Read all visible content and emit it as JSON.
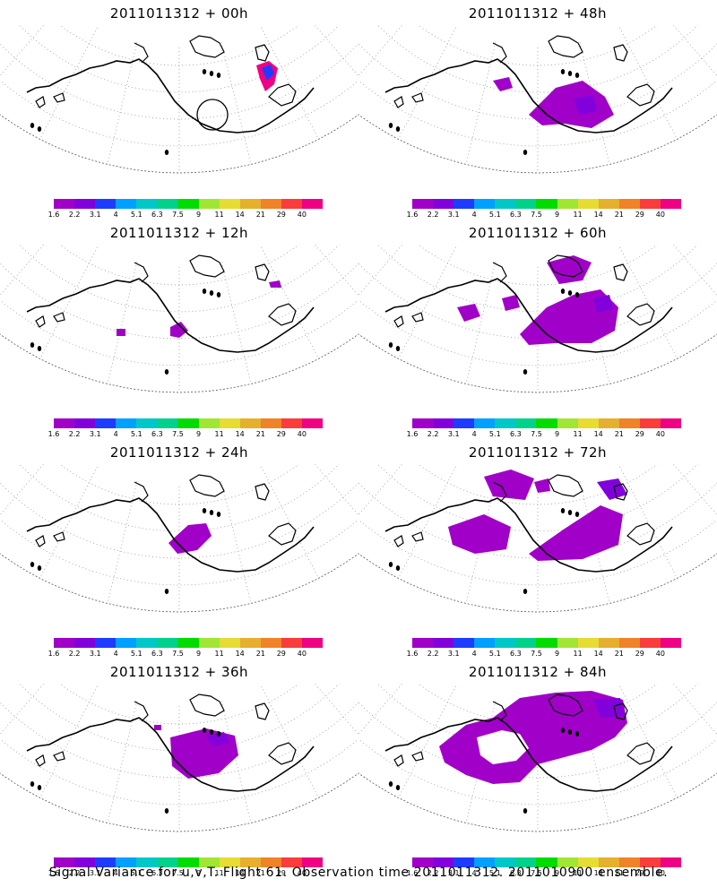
{
  "footer": "Signal Variance for u,v,T. Flight 61. Observation time 2011011312. 2011010900 ensemble.",
  "colorbar": {
    "colors": [
      "#a000c8",
      "#8200dc",
      "#1e3cff",
      "#00a0ff",
      "#00c8c8",
      "#00d28c",
      "#00dc00",
      "#a0e632",
      "#e6dc32",
      "#e6af2d",
      "#f08228",
      "#fa3c3c",
      "#f00082"
    ],
    "labels": [
      "1.6",
      "2.2",
      "3.1",
      "4",
      "5.1",
      "6.3",
      "7.5",
      "9",
      "11",
      "14",
      "21",
      "29",
      "40"
    ]
  },
  "panels": [
    {
      "title": "2011011312 + 00h",
      "circle": true
    },
    {
      "title": "2011011312 + 48h",
      "circle": false
    },
    {
      "title": "2011011312 + 12h",
      "circle": false
    },
    {
      "title": "2011011312 + 60h",
      "circle": false
    },
    {
      "title": "2011011312 + 24h",
      "circle": false
    },
    {
      "title": "2011011312 + 72h",
      "circle": false
    },
    {
      "title": "2011011312 + 36h",
      "circle": false
    },
    {
      "title": "2011011312 + 84h",
      "circle": false
    }
  ]
}
